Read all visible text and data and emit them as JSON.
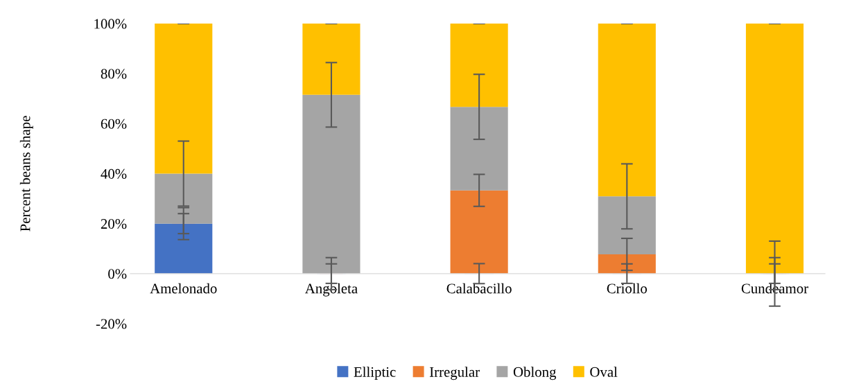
{
  "chart_data": {
    "type": "bar",
    "stacked": true,
    "ylabel": "Percent beans shape",
    "categories": [
      "Amelonado",
      "Angoleta",
      "Calabacillo",
      "Criollo",
      "Cundeamor"
    ],
    "series": [
      {
        "name": "Elliptic",
        "color": "#4472c4",
        "values": [
          20,
          0,
          0,
          0,
          0
        ],
        "errors": [
          4,
          3.9,
          4,
          3.9,
          3.9
        ]
      },
      {
        "name": "Irregular",
        "color": "#ed7d31",
        "values": [
          0,
          0,
          33.3,
          7.7,
          0
        ],
        "errors": [
          6.4,
          6.4,
          6.4,
          6.4,
          6.4
        ]
      },
      {
        "name": "Oblong",
        "color": "#a5a5a5",
        "values": [
          20,
          71.5,
          33.4,
          23.2,
          0
        ],
        "errors": [
          13,
          12.9,
          13,
          13,
          13
        ]
      },
      {
        "name": "Oval",
        "color": "#ffc000",
        "values": [
          60,
          28.5,
          33.3,
          69.1,
          100
        ],
        "errors": [
          0,
          0,
          0,
          0,
          0
        ]
      }
    ],
    "ylim": [
      -20,
      100
    ],
    "yticks": [
      {
        "value": -20,
        "label": "-20%"
      },
      {
        "value": 0,
        "label": "0%"
      },
      {
        "value": 20,
        "label": "20%"
      },
      {
        "value": 40,
        "label": "40%"
      },
      {
        "value": 60,
        "label": "60%"
      },
      {
        "value": 80,
        "label": "80%"
      },
      {
        "value": 100,
        "label": "100%"
      }
    ],
    "grid": false,
    "legend": "bottom"
  }
}
